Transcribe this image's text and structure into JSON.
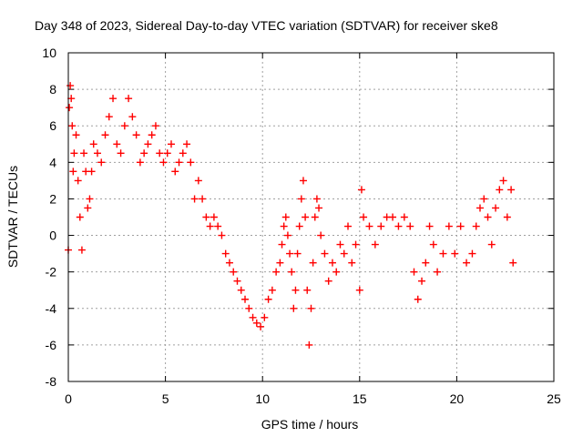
{
  "chart_data": {
    "type": "scatter",
    "title": "Day 348 of 2023, Sidereal Day-to-day VTEC variation (SDTVAR) for receiver ske8",
    "xlabel": "GPS time / hours",
    "ylabel": "SDTVAR / TECUs",
    "xlim": [
      0,
      25
    ],
    "ylim": [
      -8,
      10
    ],
    "xticks": [
      "0",
      "5",
      "10",
      "15",
      "20",
      "25"
    ],
    "yticks": [
      "-8",
      "-6",
      "-4",
      "-2",
      "0",
      "2",
      "4",
      "6",
      "8",
      "10"
    ],
    "grid": true,
    "marker": "plus",
    "series": [
      {
        "name": "SDTVAR",
        "color": "#ff0000",
        "x": [
          0.0,
          0.05,
          0.1,
          0.15,
          0.2,
          0.25,
          0.3,
          0.4,
          0.5,
          0.6,
          0.7,
          0.8,
          0.9,
          1.0,
          1.1,
          1.2,
          1.3,
          1.5,
          1.7,
          1.9,
          2.1,
          2.3,
          2.5,
          2.7,
          2.9,
          3.1,
          3.3,
          3.5,
          3.7,
          3.9,
          4.1,
          4.3,
          4.5,
          4.7,
          4.9,
          5.1,
          5.3,
          5.5,
          5.7,
          5.9,
          6.1,
          6.3,
          6.5,
          6.7,
          6.9,
          7.1,
          7.3,
          7.5,
          7.7,
          7.9,
          8.1,
          8.3,
          8.5,
          8.7,
          8.9,
          9.1,
          9.3,
          9.5,
          9.7,
          9.9,
          10.1,
          10.3,
          10.5,
          10.7,
          10.9,
          11.0,
          11.1,
          11.2,
          11.3,
          11.4,
          11.5,
          11.6,
          11.7,
          11.8,
          11.9,
          12.0,
          12.1,
          12.2,
          12.3,
          12.4,
          12.5,
          12.6,
          12.7,
          12.8,
          12.9,
          13.0,
          13.2,
          13.4,
          13.6,
          13.8,
          14.0,
          14.2,
          14.4,
          14.6,
          14.8,
          15.0,
          15.1,
          15.2,
          15.5,
          15.8,
          16.1,
          16.4,
          16.7,
          17.0,
          17.3,
          17.6,
          17.8,
          18.0,
          18.2,
          18.4,
          18.6,
          18.8,
          19.0,
          19.3,
          19.6,
          19.9,
          20.2,
          20.5,
          20.8,
          21.0,
          21.2,
          21.4,
          21.6,
          21.8,
          22.0,
          22.2,
          22.4,
          22.6,
          22.8,
          22.9
        ],
        "y": [
          -0.8,
          7.0,
          8.2,
          7.5,
          6.0,
          3.5,
          4.5,
          5.5,
          3.0,
          1.0,
          -0.8,
          4.5,
          3.5,
          1.5,
          2.0,
          3.5,
          5.0,
          4.5,
          4.0,
          5.5,
          6.5,
          7.5,
          5.0,
          4.5,
          6.0,
          7.5,
          6.5,
          5.5,
          4.0,
          4.5,
          5.0,
          5.5,
          6.0,
          4.5,
          4.0,
          4.5,
          5.0,
          3.5,
          4.0,
          4.5,
          5.0,
          4.0,
          2.0,
          3.0,
          2.0,
          1.0,
          0.5,
          1.0,
          0.5,
          0.0,
          -1.0,
          -1.5,
          -2.0,
          -2.5,
          -3.0,
          -3.5,
          -4.0,
          -4.5,
          -4.8,
          -5.0,
          -4.5,
          -3.5,
          -3.0,
          -2.0,
          -1.5,
          -0.5,
          0.5,
          1.0,
          0.0,
          -1.0,
          -2.0,
          -4.0,
          -3.0,
          -1.0,
          0.5,
          2.0,
          3.0,
          1.0,
          -3.0,
          -6.0,
          -4.0,
          -1.5,
          1.0,
          2.0,
          1.5,
          0.0,
          -1.0,
          -2.5,
          -1.5,
          -2.0,
          -0.5,
          -1.0,
          0.5,
          -1.5,
          -0.5,
          -3.0,
          2.5,
          1.0,
          0.5,
          -0.5,
          0.5,
          1.0,
          1.0,
          0.5,
          1.0,
          0.5,
          -2.0,
          -3.5,
          -2.5,
          -1.5,
          0.5,
          -0.5,
          -2.0,
          -1.0,
          0.5,
          -1.0,
          0.5,
          -1.5,
          -1.0,
          0.5,
          1.5,
          2.0,
          1.0,
          -0.5,
          1.5,
          2.5,
          3.0,
          1.0,
          2.5,
          -1.5
        ]
      }
    ]
  }
}
